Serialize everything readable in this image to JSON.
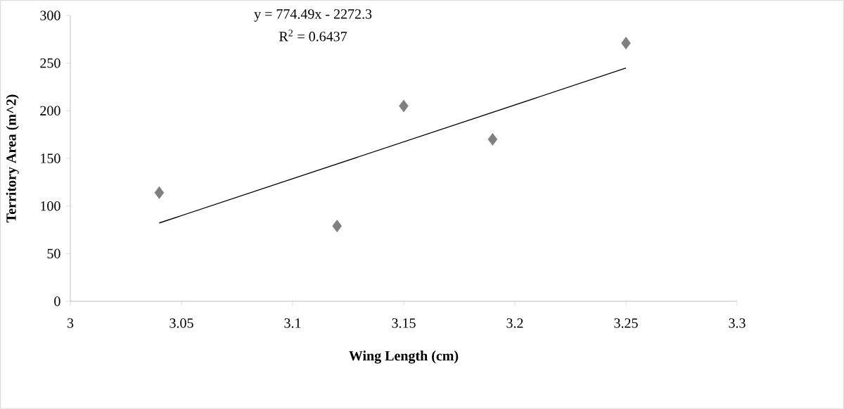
{
  "chart_data": {
    "type": "scatter",
    "xlabel": "Wing Length (cm)",
    "ylabel": "Territory Area  (m^2)",
    "annotations": [
      "y = 774.49x - 2272.3",
      "R$^{2}$ = 0.6437"
    ],
    "xlim": [
      3,
      3.3
    ],
    "xticks": [
      3,
      3.05,
      3.1,
      3.15,
      3.2,
      3.25,
      3.3
    ],
    "ylim": [
      0,
      300
    ],
    "yticks": [
      0,
      50,
      100,
      150,
      200,
      250,
      300
    ],
    "series": [
      {
        "color": "#7f7f7f",
        "marker": "diamond",
        "x": [
          3.04,
          3.12,
          3.15,
          3.19,
          3.25
        ],
        "values": [
          114,
          79,
          205,
          170,
          271
        ]
      },
      {
        "type": "line",
        "color": "#000000",
        "marker": "none",
        "line_style": "solid",
        "x": [
          3.04,
          3.25
        ],
        "values": [
          82.2,
          244.8
        ]
      }
    ]
  }
}
